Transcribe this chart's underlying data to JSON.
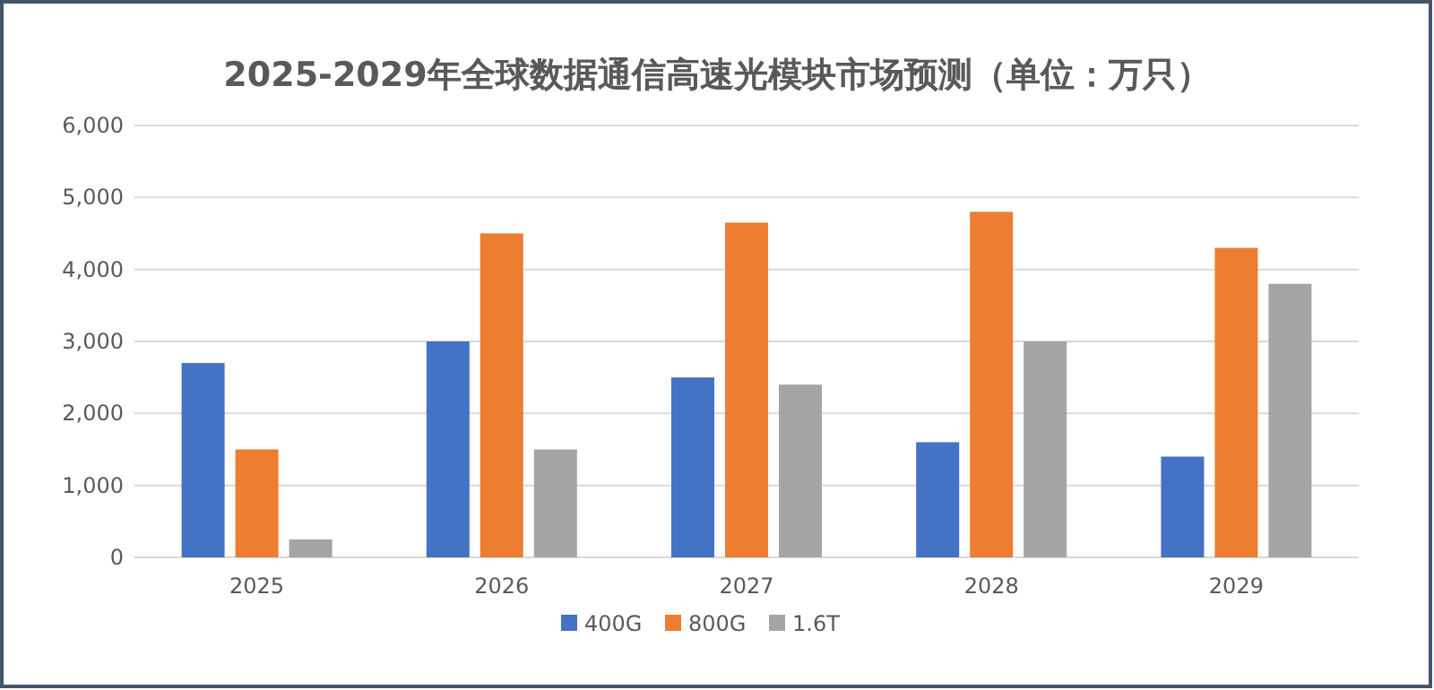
{
  "chart_data": {
    "type": "bar",
    "title": "2025-2029年全球数据通信高速光模块市场预测（单位：万只）",
    "categories": [
      "2025",
      "2026",
      "2027",
      "2028",
      "2029"
    ],
    "series": [
      {
        "name": "400G",
        "color": "#4472c4",
        "values": [
          2700,
          3000,
          2500,
          1600,
          1400
        ]
      },
      {
        "name": "800G",
        "color": "#ed7d31",
        "values": [
          1500,
          4500,
          4650,
          4800,
          4300
        ]
      },
      {
        "name": "1.6T",
        "color": "#a5a5a5",
        "values": [
          250,
          1500,
          2400,
          3000,
          3800
        ]
      }
    ],
    "ylim": [
      0,
      6000
    ],
    "yticks": [
      {
        "value": 0,
        "label": "0"
      },
      {
        "value": 1000,
        "label": "1,000"
      },
      {
        "value": 2000,
        "label": "2,000"
      },
      {
        "value": 3000,
        "label": "3,000"
      },
      {
        "value": 4000,
        "label": "4,000"
      },
      {
        "value": 5000,
        "label": "5,000"
      },
      {
        "value": 6000,
        "label": "6,000"
      }
    ],
    "grid": "y",
    "legend": "bottom"
  }
}
